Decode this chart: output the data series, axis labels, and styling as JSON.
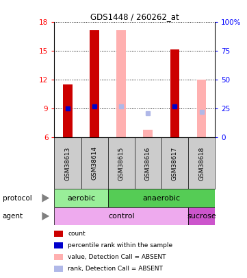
{
  "title": "GDS1448 / 260262_at",
  "samples": [
    "GSM38613",
    "GSM38614",
    "GSM38615",
    "GSM38616",
    "GSM38617",
    "GSM38618"
  ],
  "ylim_left": [
    6,
    18
  ],
  "ylim_right": [
    0,
    100
  ],
  "yticks_left": [
    6,
    9,
    12,
    15,
    18
  ],
  "yticks_right": [
    0,
    25,
    50,
    75,
    100
  ],
  "yticklabels_right": [
    "0",
    "25",
    "50",
    "75",
    "100%"
  ],
  "bar_values": [
    11.5,
    17.2,
    null,
    null,
    15.2,
    null
  ],
  "bar_ranks": [
    25,
    27,
    null,
    null,
    27,
    null
  ],
  "absent_values": [
    null,
    null,
    17.2,
    6.8,
    null,
    12.0
  ],
  "absent_ranks": [
    null,
    null,
    27,
    21,
    null,
    22
  ],
  "bar_color": "#cc0000",
  "rank_color": "#0000cc",
  "absent_bar_color": "#ffb0b0",
  "absent_rank_color": "#b0b8e8",
  "bar_width": 0.35,
  "protocol_groups": [
    {
      "label": "aerobic",
      "start": 0,
      "end": 2,
      "color": "#99ee99"
    },
    {
      "label": "anaerobic",
      "start": 2,
      "end": 6,
      "color": "#55cc55"
    }
  ],
  "agent_groups": [
    {
      "label": "control",
      "start": 0,
      "end": 5,
      "color": "#eeaaee"
    },
    {
      "label": "sucrose",
      "start": 5,
      "end": 6,
      "color": "#cc55cc"
    }
  ],
  "legend_items": [
    {
      "label": "count",
      "color": "#cc0000"
    },
    {
      "label": "percentile rank within the sample",
      "color": "#0000cc"
    },
    {
      "label": "value, Detection Call = ABSENT",
      "color": "#ffb0b0"
    },
    {
      "label": "rank, Detection Call = ABSENT",
      "color": "#b0b8e8"
    }
  ],
  "protocol_label": "protocol",
  "agent_label": "agent",
  "background_color": "#ffffff",
  "label_bg_color": "#cccccc"
}
